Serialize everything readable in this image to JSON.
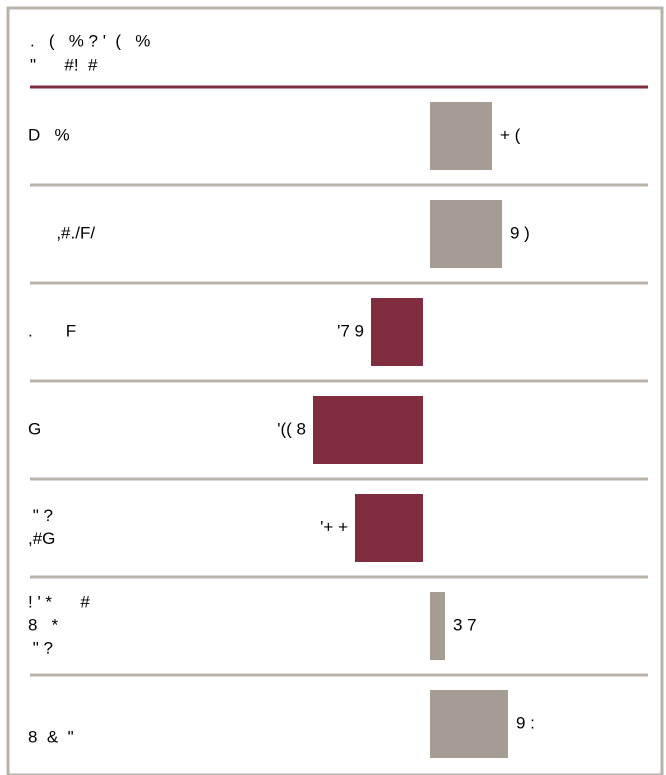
{
  "chart_data": {
    "type": "bar",
    "orientation": "horizontal",
    "title": ".   (   % ? '  (   %",
    "subtitle": "\"      #!  #",
    "categories": [
      [
        "D   %"
      ],
      [
        "      ,#./F/"
      ],
      [
        ".       F"
      ],
      [
        "G"
      ],
      [
        " \" ?",
        ",#G"
      ],
      [
        "! ' *      #",
        "8   *",
        " \" ?"
      ],
      [
        "8  &  \""
      ]
    ],
    "values": [
      62,
      72,
      -52,
      -110,
      -68,
      15,
      78
    ],
    "value_labels": [
      "+ (",
      "9 )",
      "'7 9",
      "'(( 8",
      "'+ +",
      "3 7",
      "9 :"
    ],
    "positive_color": "#a59d93",
    "negative_color": "#7f2d3f",
    "xlim": [
      -400,
      220
    ]
  }
}
